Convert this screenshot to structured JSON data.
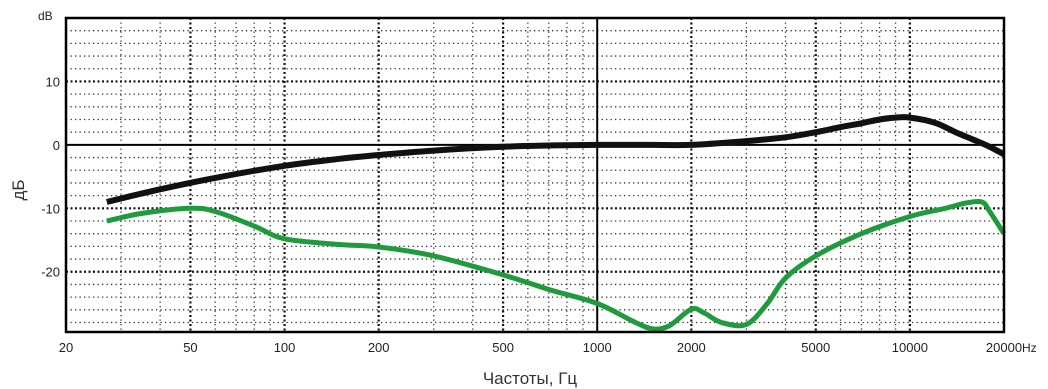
{
  "chart_data": {
    "type": "line",
    "title": "",
    "xlabel": "Частоты, Гц",
    "ylabel": "дБ",
    "x_unit": "Hz",
    "y_unit": "dB",
    "x_scale": "log",
    "xlim": [
      20,
      20000
    ],
    "ylim": [
      -29.5,
      20
    ],
    "x_ticks": [
      20,
      50,
      100,
      200,
      500,
      1000,
      2000,
      5000,
      10000,
      20000
    ],
    "x_tick_labels": [
      "20",
      "50",
      "100",
      "200",
      "500",
      "1000",
      "2000",
      "5000",
      "10000",
      "20000"
    ],
    "y_ticks": [
      10,
      0,
      -10,
      -20
    ],
    "y_tick_labels": [
      "10",
      "0",
      "-10",
      "-20"
    ],
    "grid": true,
    "legend": false,
    "series": [
      {
        "color": "#111111",
        "x": [
          27,
          40,
          60,
          100,
          150,
          200,
          300,
          500,
          700,
          1000,
          1500,
          2000,
          3000,
          4000,
          5000,
          6000,
          7000,
          8000,
          9000,
          10000,
          12000,
          14000,
          16000,
          18000,
          20000
        ],
        "y": [
          -9,
          -7,
          -5.2,
          -3.3,
          -2.2,
          -1.6,
          -0.9,
          -0.3,
          -0.1,
          0,
          0,
          0,
          0.6,
          1.2,
          2.0,
          2.8,
          3.4,
          4.0,
          4.3,
          4.3,
          3.5,
          2.0,
          0.8,
          -0.3,
          -1.5
        ]
      },
      {
        "color": "#1f9a3c",
        "x": [
          27,
          35,
          50,
          60,
          80,
          100,
          150,
          200,
          300,
          500,
          700,
          1000,
          1300,
          1500,
          1700,
          2000,
          2200,
          2500,
          3000,
          3500,
          4000,
          5000,
          7000,
          10000,
          13000,
          15000,
          17000,
          18000,
          20000
        ],
        "y": [
          -12,
          -10.8,
          -10,
          -10.5,
          -12.8,
          -14.8,
          -15.7,
          -16.1,
          -17.5,
          -20.5,
          -22.8,
          -25,
          -27.8,
          -29,
          -28.5,
          -25.9,
          -26.5,
          -28,
          -28.3,
          -25,
          -21,
          -17.5,
          -14,
          -11.3,
          -10,
          -9.2,
          -9,
          -10.5,
          -14
        ]
      }
    ]
  }
}
